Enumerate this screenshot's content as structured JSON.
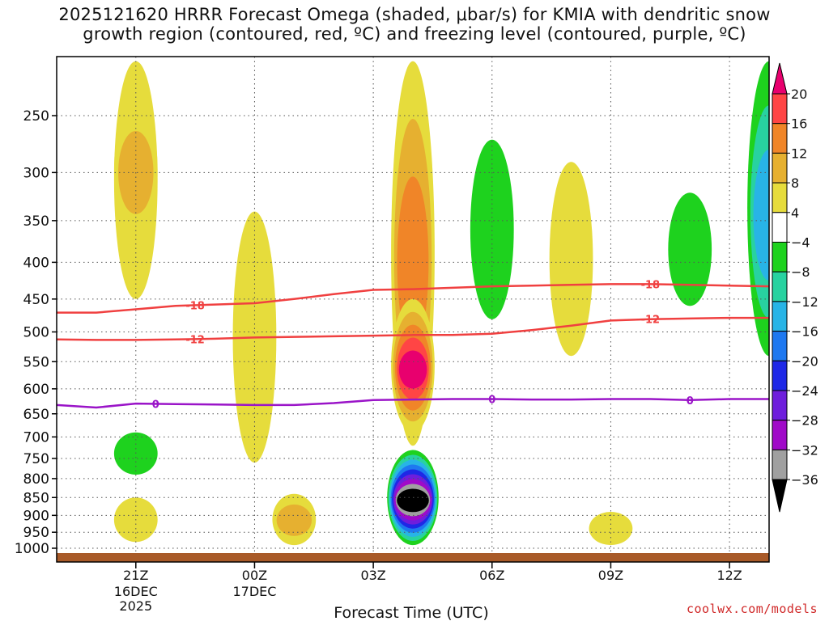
{
  "title": {
    "line1": "2025121620 HRRR Forecast Omega (shaded, μbar/s) for KMIA with dendritic snow",
    "line2": "growth region (contoured, red, ºC) and freezing level (contoured, purple, ºC)"
  },
  "credit": "coolwx.com/models",
  "chart_data": {
    "type": "heatmap",
    "title": "2025121620 HRRR Forecast Omega (shaded, μbar/s) for KMIA with dendritic snow growth region (contoured, red, ºC) and freezing level (contoured, purple, ºC)",
    "xlabel": "Forecast Time (UTC)",
    "ylabel": "",
    "x_range_hours": [
      -1.0,
      17.0
    ],
    "y_range_hpa": [
      200,
      1000
    ],
    "y_scale": "log-pressure",
    "grid": true,
    "x_ticks": [
      {
        "hour": 1,
        "label": "21Z",
        "sub": [
          "16DEC",
          "2025"
        ]
      },
      {
        "hour": 4,
        "label": "00Z",
        "sub": [
          "17DEC"
        ]
      },
      {
        "hour": 7,
        "label": "03Z",
        "sub": []
      },
      {
        "hour": 10,
        "label": "06Z",
        "sub": []
      },
      {
        "hour": 13,
        "label": "09Z",
        "sub": []
      },
      {
        "hour": 16,
        "label": "12Z",
        "sub": []
      }
    ],
    "y_ticks": [
      250,
      300,
      350,
      400,
      450,
      500,
      550,
      600,
      650,
      700,
      750,
      800,
      850,
      900,
      950,
      1000
    ],
    "colorbar": {
      "levels": [
        "20",
        "16",
        "12",
        "8",
        "4",
        "−4",
        "−8",
        "−12",
        "−16",
        "−20",
        "−24",
        "−28",
        "−32",
        "−36"
      ],
      "colors": [
        "#e8006e",
        "#ff4545",
        "#f08528",
        "#e6b030",
        "#e6dc3c",
        "#ffffff",
        "#1ed21e",
        "#28d2a0",
        "#28b4e6",
        "#1e78f0",
        "#1e28e6",
        "#6e1edc",
        "#a00ac8",
        "#a0a0a0",
        "#000000"
      ]
    },
    "omega_features": [
      {
        "name": "upward-motion-21z",
        "hour": 1.0,
        "p_top": 200,
        "p_bottom": 450,
        "value": 4
      },
      {
        "name": "upward-motion-21z-core",
        "hour": 1.0,
        "p_top": 240,
        "p_bottom": 370,
        "value": 8
      },
      {
        "name": "sinking-motion-21z-low",
        "hour": 1.0,
        "p_top": 690,
        "p_bottom": 790,
        "value": -4
      },
      {
        "name": "upward-motion-21z-low",
        "hour": 1.0,
        "p_top": 850,
        "p_bottom": 980,
        "value": 4
      },
      {
        "name": "upward-motion-00z",
        "hour": 4.0,
        "p_top": 340,
        "p_bottom": 760,
        "value": 4
      },
      {
        "name": "upward-motion-01z-low",
        "hour": 5.0,
        "p_top": 840,
        "p_bottom": 990,
        "value": 8
      },
      {
        "name": "upward-motion-04z",
        "hour": 8.0,
        "p_top": 200,
        "p_bottom": 720,
        "value": 12
      },
      {
        "name": "upward-motion-04z-core",
        "hour": 8.0,
        "p_top": 450,
        "p_bottom": 690,
        "value": 20
      },
      {
        "name": "sinking-motion-04z-low",
        "hour": 8.0,
        "p_top": 730,
        "p_bottom": 990,
        "value": -36
      },
      {
        "name": "sinking-motion-06z",
        "hour": 10.0,
        "p_top": 270,
        "p_bottom": 480,
        "value": -4
      },
      {
        "name": "upward-motion-07z",
        "hour": 12.0,
        "p_top": 290,
        "p_bottom": 540,
        "value": 4
      },
      {
        "name": "upward-motion-09z-low",
        "hour": 13.0,
        "p_top": 890,
        "p_bottom": 990,
        "value": 4
      },
      {
        "name": "sinking-motion-11z",
        "hour": 15.0,
        "p_top": 320,
        "p_bottom": 460,
        "value": -4
      },
      {
        "name": "sinking-motion-13z",
        "hour": 17.0,
        "p_top": 210,
        "p_bottom": 540,
        "value": -12
      }
    ],
    "contours": [
      {
        "name": "dendritic-minus-18",
        "label": "-18",
        "color": "#f04040",
        "x": [
          -1,
          0,
          1,
          2,
          3,
          4,
          5,
          6,
          7,
          8,
          9,
          10,
          11,
          12,
          13,
          14,
          15,
          16,
          17
        ],
        "p": [
          470,
          470,
          465,
          460,
          458,
          456,
          450,
          443,
          437,
          436,
          434,
          432,
          431,
          430,
          429,
          429,
          430,
          431,
          432
        ]
      },
      {
        "name": "dendritic-minus-12",
        "label": "-12",
        "color": "#f04040",
        "x": [
          -1,
          0,
          1,
          2,
          3,
          4,
          5,
          6,
          7,
          8,
          9,
          10,
          11,
          12,
          13,
          14,
          15,
          16,
          17
        ],
        "p": [
          512,
          513,
          513,
          512,
          511,
          509,
          508,
          507,
          506,
          505,
          505,
          503,
          497,
          490,
          482,
          480,
          479,
          478,
          478
        ]
      },
      {
        "name": "freezing-level-0",
        "label": "0",
        "color": "#9a14c8",
        "x": [
          -1,
          0,
          1,
          2,
          3,
          4,
          5,
          6,
          7,
          8,
          9,
          10,
          11,
          12,
          13,
          14,
          15,
          16,
          17
        ],
        "p": [
          632,
          637,
          629,
          630,
          631,
          632,
          632,
          628,
          622,
          621,
          620,
          620,
          621,
          621,
          620,
          620,
          622,
          620,
          620
        ]
      }
    ],
    "surface_bar_color": "#a85a28"
  }
}
